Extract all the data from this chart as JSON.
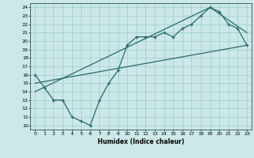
{
  "xlabel": "Humidex (Indice chaleur)",
  "bg_color": "#cce8e8",
  "grid_color": "#99cccc",
  "line_color": "#2a6b6b",
  "xlim": [
    -0.5,
    23.5
  ],
  "ylim": [
    9.5,
    24.5
  ],
  "xticks": [
    0,
    1,
    2,
    3,
    4,
    5,
    6,
    7,
    8,
    9,
    10,
    11,
    12,
    13,
    14,
    15,
    16,
    17,
    18,
    19,
    20,
    21,
    22,
    23
  ],
  "yticks": [
    10,
    11,
    12,
    13,
    14,
    15,
    16,
    17,
    18,
    19,
    20,
    21,
    22,
    23,
    24
  ],
  "curve_x": [
    0,
    1,
    2,
    3,
    4,
    5,
    6,
    7,
    8,
    9,
    10,
    11,
    12,
    13,
    14,
    15,
    16,
    17,
    18,
    19,
    20,
    21,
    22,
    23
  ],
  "curve_y": [
    16,
    14.5,
    13,
    13,
    11,
    10.5,
    10,
    13,
    15,
    16.5,
    19.5,
    20.5,
    20.5,
    20.5,
    21,
    20.5,
    21.5,
    22,
    23,
    24,
    23.5,
    22,
    21.5,
    19.5
  ],
  "line1_x": [
    0,
    23
  ],
  "line1_y": [
    15,
    19.5
  ],
  "line2_x": [
    0,
    19,
    23
  ],
  "line2_y": [
    14,
    24,
    21
  ]
}
